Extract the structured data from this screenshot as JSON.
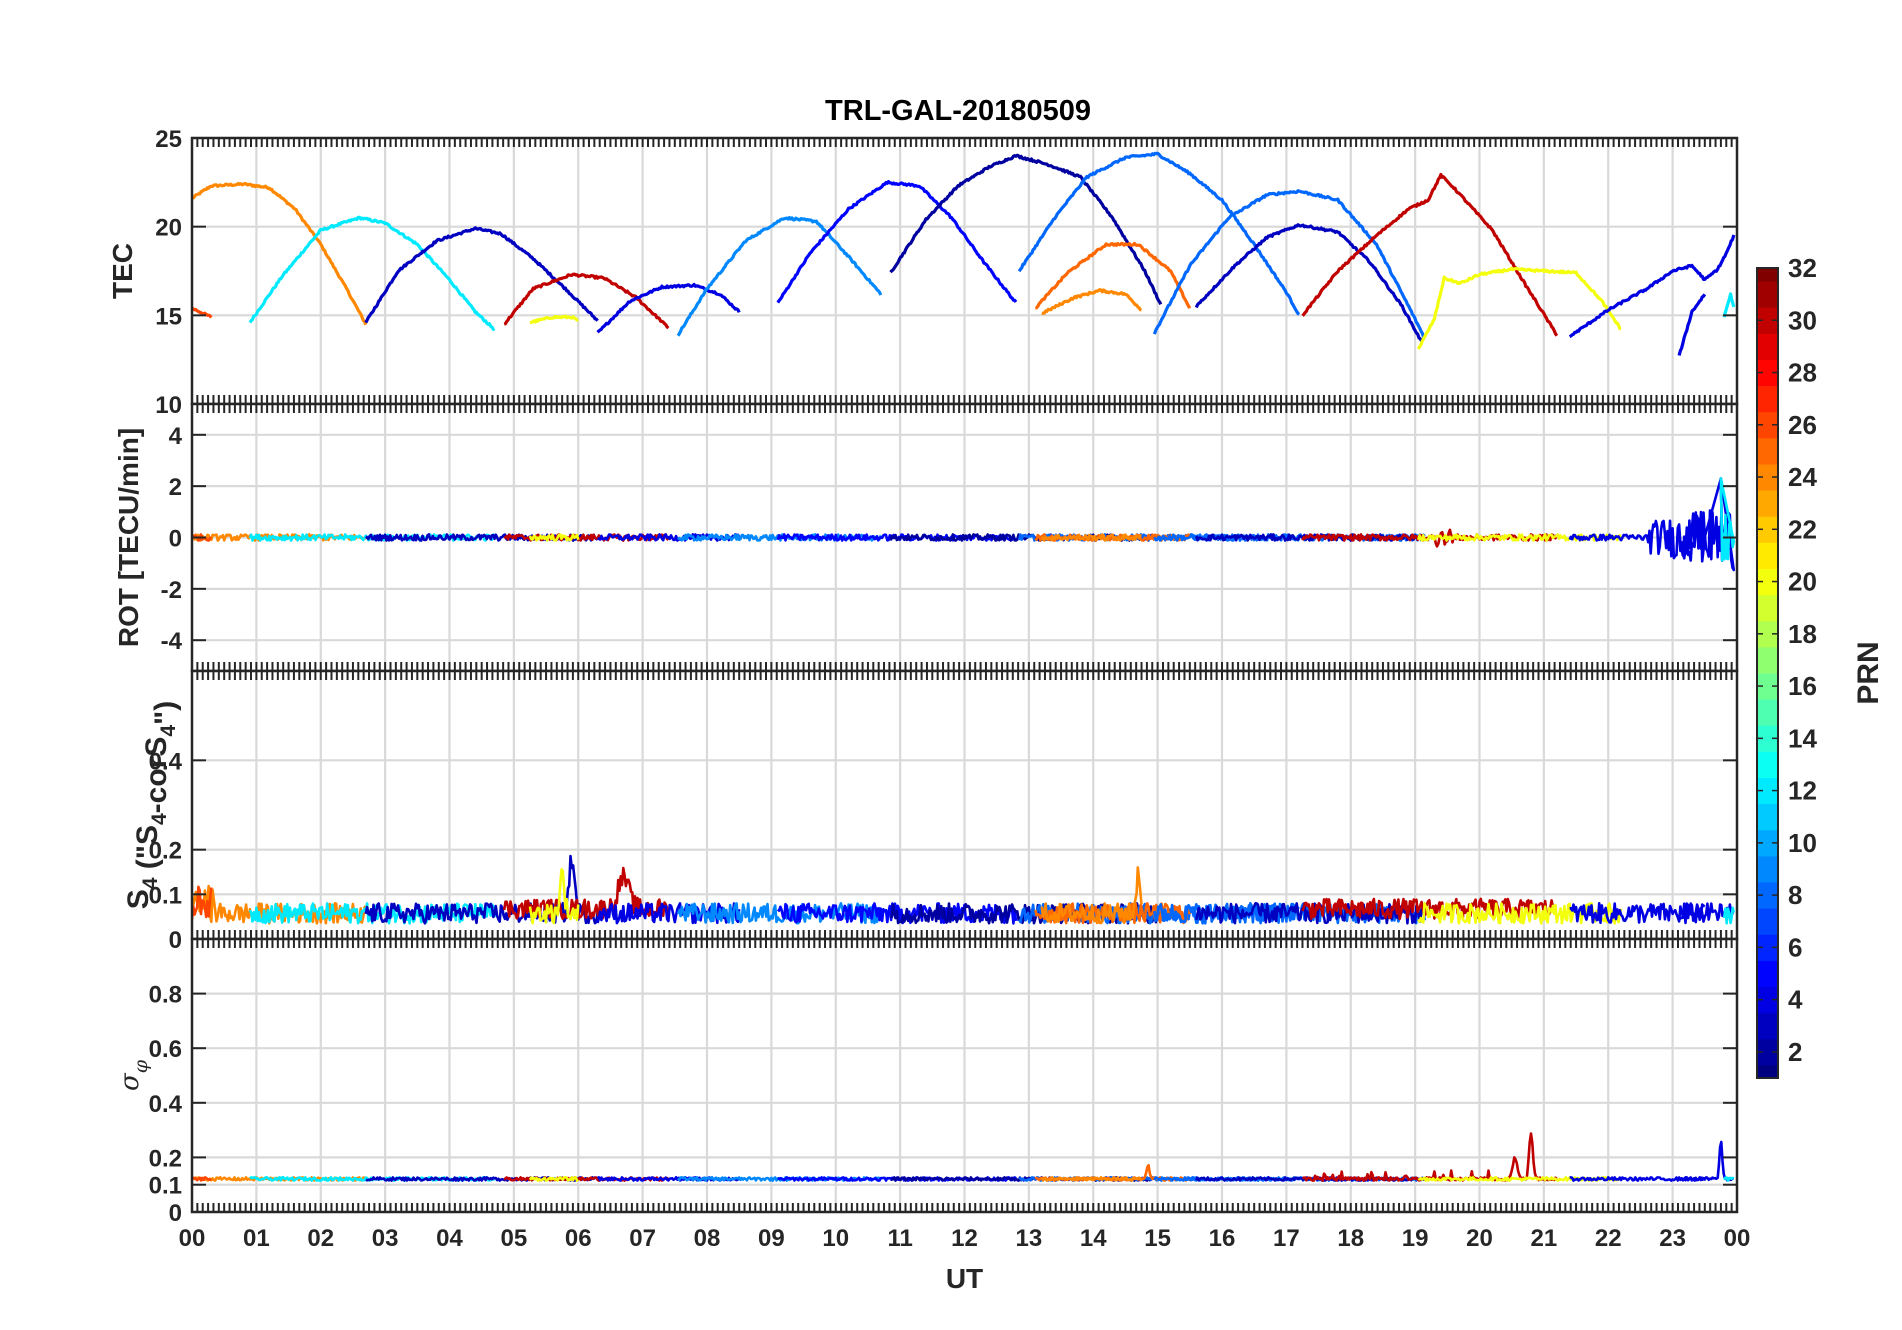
{
  "chart_data": [
    {
      "type": "line",
      "title": "TRL-GAL-20180509",
      "ylabel": "TEC",
      "xlabel": "UT",
      "ylim": [
        10,
        25
      ],
      "yticks": [
        "10",
        "15",
        "20",
        "25"
      ],
      "yticks_values": [
        10,
        15,
        20,
        25
      ],
      "grid": true,
      "series": [
        {
          "name": "PRN 24",
          "prn": 24,
          "x": [
            0,
            0.3,
            0.8,
            1.2,
            1.6,
            2.0,
            2.4,
            2.7
          ],
          "y": [
            21.6,
            22.3,
            22.4,
            22.2,
            21.0,
            19.0,
            16.5,
            14.5
          ]
        },
        {
          "name": "PRN 26",
          "prn": 26,
          "x": [
            0,
            0.3
          ],
          "y": [
            15.4,
            14.9
          ]
        },
        {
          "name": "PRN 12",
          "prn": 12,
          "x": [
            0.9,
            1.4,
            2.0,
            2.6,
            3.0,
            3.5,
            4.0,
            4.4,
            4.7
          ],
          "y": [
            14.6,
            17.2,
            19.8,
            20.5,
            20.2,
            19.0,
            17.0,
            15.2,
            14.2
          ]
        },
        {
          "name": "PRN 3",
          "prn": 3,
          "x": [
            2.7,
            3.2,
            3.8,
            4.4,
            4.8,
            5.3,
            5.8,
            6.3
          ],
          "y": [
            14.6,
            17.5,
            19.2,
            19.9,
            19.6,
            18.2,
            16.5,
            14.7
          ]
        },
        {
          "name": "PRN 30",
          "prn": 30,
          "x": [
            4.85,
            5.3,
            5.9,
            6.4,
            6.9,
            7.4
          ],
          "y": [
            14.5,
            16.5,
            17.3,
            17.1,
            16.0,
            14.3
          ]
        },
        {
          "name": "PRN 20",
          "prn": 20,
          "x": [
            5.25,
            5.6,
            5.9,
            6.0
          ],
          "y": [
            14.6,
            14.9,
            14.9,
            14.7
          ]
        },
        {
          "name": "PRN 4",
          "prn": 4,
          "x": [
            6.3,
            6.8,
            7.3,
            7.8,
            8.2,
            8.5
          ],
          "y": [
            14.0,
            15.8,
            16.6,
            16.7,
            16.2,
            15.2
          ]
        },
        {
          "name": "PRN 9",
          "prn": 9,
          "x": [
            7.55,
            8.0,
            8.6,
            9.2,
            9.7,
            10.2,
            10.7
          ],
          "y": [
            13.9,
            16.5,
            19.2,
            20.5,
            20.3,
            18.3,
            16.2
          ]
        },
        {
          "name": "PRN 5",
          "prn": 5,
          "x": [
            9.1,
            9.6,
            10.2,
            10.8,
            11.3,
            11.8,
            12.3,
            12.8
          ],
          "y": [
            15.7,
            18.5,
            21.0,
            22.5,
            22.3,
            20.5,
            18.0,
            15.7
          ]
        },
        {
          "name": "PRN 2",
          "prn": 2,
          "x": [
            10.85,
            11.4,
            11.9,
            12.4,
            12.8,
            13.3,
            13.8,
            14.3,
            14.8,
            15.05
          ],
          "y": [
            17.4,
            20.4,
            22.3,
            23.4,
            24.0,
            23.5,
            22.8,
            20.5,
            17.5,
            15.6
          ]
        },
        {
          "name": "PRN 8",
          "prn": 8,
          "x": [
            12.85,
            13.4,
            13.9,
            14.5,
            15.0,
            15.5,
            16.0,
            16.5,
            17.0,
            17.2
          ],
          "y": [
            17.5,
            20.5,
            22.8,
            23.9,
            24.1,
            23.0,
            21.5,
            19.0,
            16.3,
            15.0
          ]
        },
        {
          "name": "PRN 25",
          "prn": 25,
          "x": [
            13.1,
            13.6,
            14.2,
            14.7,
            15.2,
            15.5
          ],
          "y": [
            15.4,
            17.4,
            19.0,
            19.0,
            17.5,
            15.4
          ]
        },
        {
          "name": "PRN 24",
          "prn": 24,
          "x": [
            13.2,
            13.7,
            14.1,
            14.5,
            14.75
          ],
          "y": [
            15.1,
            16.0,
            16.4,
            16.2,
            15.3
          ]
        },
        {
          "name": "PRN 8",
          "prn": 8,
          "x": [
            14.95,
            15.5,
            16.1,
            16.7,
            17.2,
            17.8,
            18.4,
            18.9,
            19.15
          ],
          "y": [
            14.0,
            17.8,
            20.5,
            21.8,
            22.0,
            21.5,
            19.0,
            15.5,
            13.7
          ]
        },
        {
          "name": "PRN 3",
          "prn": 3,
          "x": [
            15.6,
            16.2,
            16.7,
            17.2,
            17.8,
            18.3,
            18.8,
            19.1
          ],
          "y": [
            15.5,
            17.8,
            19.4,
            20.1,
            19.7,
            18.0,
            15.5,
            13.5
          ]
        },
        {
          "name": "PRN 30",
          "prn": 30,
          "x": [
            17.25,
            17.8,
            18.4,
            18.9,
            19.2,
            19.4,
            19.6,
            20.2,
            20.7,
            21.2
          ],
          "y": [
            15.0,
            17.5,
            19.5,
            21.0,
            21.5,
            22.9,
            22.2,
            19.8,
            16.8,
            13.9
          ]
        },
        {
          "name": "PRN 20",
          "prn": 20,
          "x": [
            19.05,
            19.3,
            19.45,
            19.7,
            20.0,
            20.5,
            21.0,
            21.5,
            21.9,
            22.2
          ],
          "y": [
            13.1,
            14.8,
            17.1,
            16.8,
            17.3,
            17.6,
            17.5,
            17.4,
            15.8,
            14.2
          ]
        },
        {
          "name": "PRN 4",
          "prn": 4,
          "x": [
            21.4,
            22.0,
            22.6,
            23.0,
            23.3,
            23.5,
            23.7,
            23.85,
            23.95
          ],
          "y": [
            13.8,
            15.3,
            16.5,
            17.5,
            17.8,
            17.0,
            17.6,
            18.6,
            19.5
          ]
        },
        {
          "name": "PRN 4",
          "prn": 4,
          "x": [
            23.1,
            23.3,
            23.5
          ],
          "y": [
            12.7,
            15.2,
            16.2
          ]
        },
        {
          "name": "PRN 12",
          "prn": 12,
          "x": [
            23.8,
            23.9,
            23.95
          ],
          "y": [
            14.9,
            16.2,
            15.5
          ]
        }
      ]
    },
    {
      "type": "line",
      "ylabel": "ROT [TECU/min]",
      "ylim": [
        -5.2,
        5.2
      ],
      "yticks": [
        "-4",
        "-2",
        "0",
        "2",
        "4"
      ],
      "yticks_values": [
        -4,
        -2,
        0,
        2,
        4
      ],
      "grid": true,
      "series_note": "rate of TEC per PRN arc; values near 0 with small fluctuations, larger excursions near 23.6-24 UT (peak about 2.3, min about -1.0)"
    },
    {
      "type": "line",
      "ylabel": "S4 (\"S4-corS4\")",
      "ylim": [
        0,
        0.6
      ],
      "yticks": [
        "0",
        "0.1",
        "0.2",
        "0.4"
      ],
      "yticks_values": [
        0,
        0.1,
        0.2,
        0.4
      ],
      "grid": true,
      "series_note": "S4 scintillation index per PRN arc, mostly 0.02-0.08 with spikes up to about 0.19 near 06 UT and 0.17 near 14.7 UT"
    },
    {
      "type": "line",
      "ylabel": "σφ",
      "ylim": [
        0,
        1
      ],
      "yticks": [
        "0",
        "0.1",
        "0.2",
        "0.4",
        "0.6",
        "0.8"
      ],
      "yticks_values": [
        0,
        0.1,
        0.2,
        0.4,
        0.6,
        0.8
      ],
      "grid": true,
      "series_note": "phase scintillation per PRN arc, baseline about 0.11-0.13 with spikes up to about 0.3 near 20.8 UT"
    }
  ],
  "xaxis": {
    "label": "UT",
    "xlim": [
      0,
      24
    ],
    "ticks": [
      "00",
      "01",
      "02",
      "03",
      "04",
      "05",
      "06",
      "07",
      "08",
      "09",
      "10",
      "11",
      "12",
      "13",
      "14",
      "15",
      "16",
      "17",
      "18",
      "19",
      "20",
      "21",
      "22",
      "23",
      "00"
    ]
  },
  "colorbar": {
    "label": "PRN",
    "range": [
      1,
      32
    ],
    "ticks": [
      "2",
      "4",
      "6",
      "8",
      "10",
      "12",
      "14",
      "16",
      "18",
      "20",
      "22",
      "24",
      "26",
      "28",
      "30",
      "32"
    ],
    "colormap": "jet"
  }
}
